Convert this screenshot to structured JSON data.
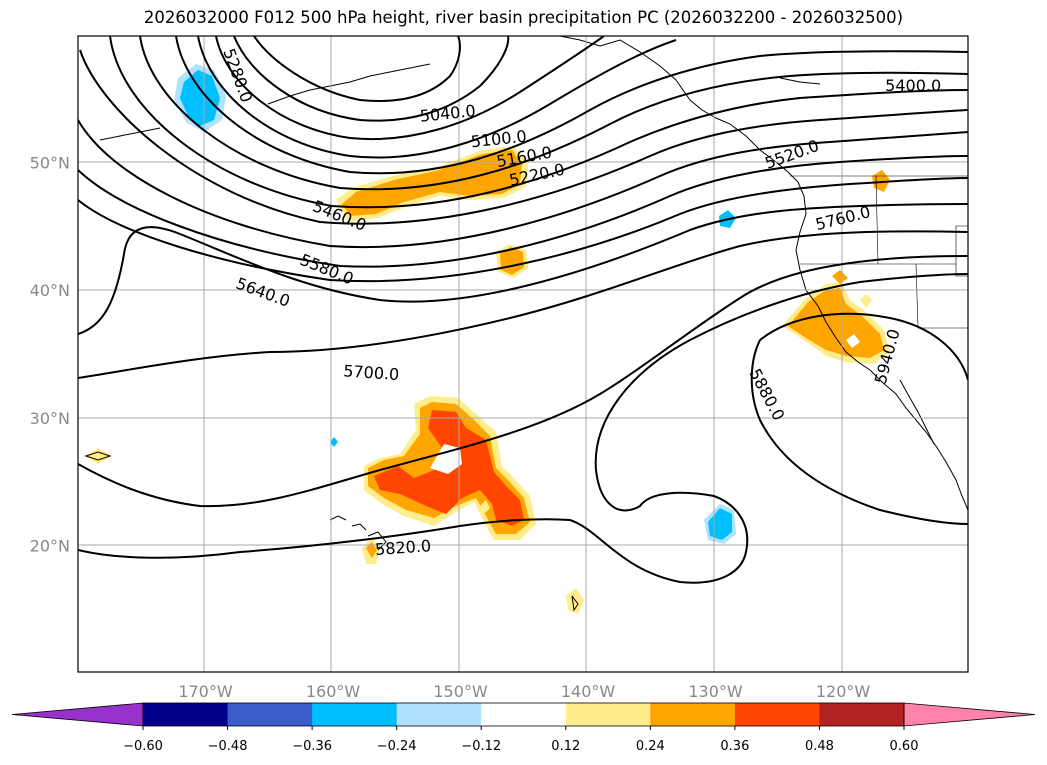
{
  "title": "2026032000 F012 500 hPa height, river basin precipitation PC (2026032200 - 2026032500)",
  "map": {
    "lat_labels": [
      {
        "lat": 50,
        "text": "50°N"
      },
      {
        "lat": 40,
        "text": "40°N"
      },
      {
        "lat": 30,
        "text": "30°N"
      },
      {
        "lat": 20,
        "text": "20°N"
      }
    ],
    "lon_labels": [
      {
        "lon": -170,
        "text": "170°W"
      },
      {
        "lon": -160,
        "text": "160°W"
      },
      {
        "lon": -150,
        "text": "150°W"
      },
      {
        "lon": -140,
        "text": "140°W"
      },
      {
        "lon": -130,
        "text": "130°W"
      },
      {
        "lon": -120,
        "text": "120°W"
      }
    ],
    "grid": true,
    "gridline_color": "#aaaaaa",
    "contour_labels": [
      {
        "text": "5040.0",
        "lon": -151,
        "lat": 53.8,
        "rot": -6
      },
      {
        "text": "5100.0",
        "lon": -147,
        "lat": 51.8,
        "rot": -6
      },
      {
        "text": "5160.0",
        "lon": -145,
        "lat": 50.4,
        "rot": -10
      },
      {
        "text": "5220.0",
        "lon": -144,
        "lat": 49.0,
        "rot": -12
      },
      {
        "text": "5280.0",
        "lon": -167.5,
        "lat": 56.8,
        "rot": 70
      },
      {
        "text": "5400.0",
        "lon": -114.5,
        "lat": 56.0,
        "rot": 0
      },
      {
        "text": "5460.0",
        "lon": -159.5,
        "lat": 45.8,
        "rot": 22
      },
      {
        "text": "5520.0",
        "lon": -124,
        "lat": 50.6,
        "rot": -20
      },
      {
        "text": "5580.0",
        "lon": -160.5,
        "lat": 41.6,
        "rot": 22
      },
      {
        "text": "5640.0",
        "lon": -165.5,
        "lat": 39.8,
        "rot": 20
      },
      {
        "text": "5700.0",
        "lon": -157,
        "lat": 33.5,
        "rot": 4
      },
      {
        "text": "5760.0",
        "lon": -120,
        "lat": 45.6,
        "rot": -14
      },
      {
        "text": "5820.0",
        "lon": -154.5,
        "lat": 19.8,
        "rot": -4
      },
      {
        "text": "5880.0",
        "lon": -126,
        "lat": 31.8,
        "rot": 62
      },
      {
        "text": "5940.0",
        "lon": -116.5,
        "lat": 34.8,
        "rot": -75
      }
    ]
  },
  "colorbar": {
    "ticks": [
      "−0.60",
      "−0.48",
      "−0.36",
      "−0.24",
      "−0.12",
      "0.12",
      "0.24",
      "0.36",
      "0.48",
      "0.60"
    ],
    "colors": [
      "#9932cc",
      "#00008b",
      "#3a5fcd",
      "#00bfff",
      "#b0e2ff",
      "#ffffff",
      "#ffec8b",
      "#ffa500",
      "#ff4500",
      "#b22222",
      "#ff82ab"
    ]
  }
}
